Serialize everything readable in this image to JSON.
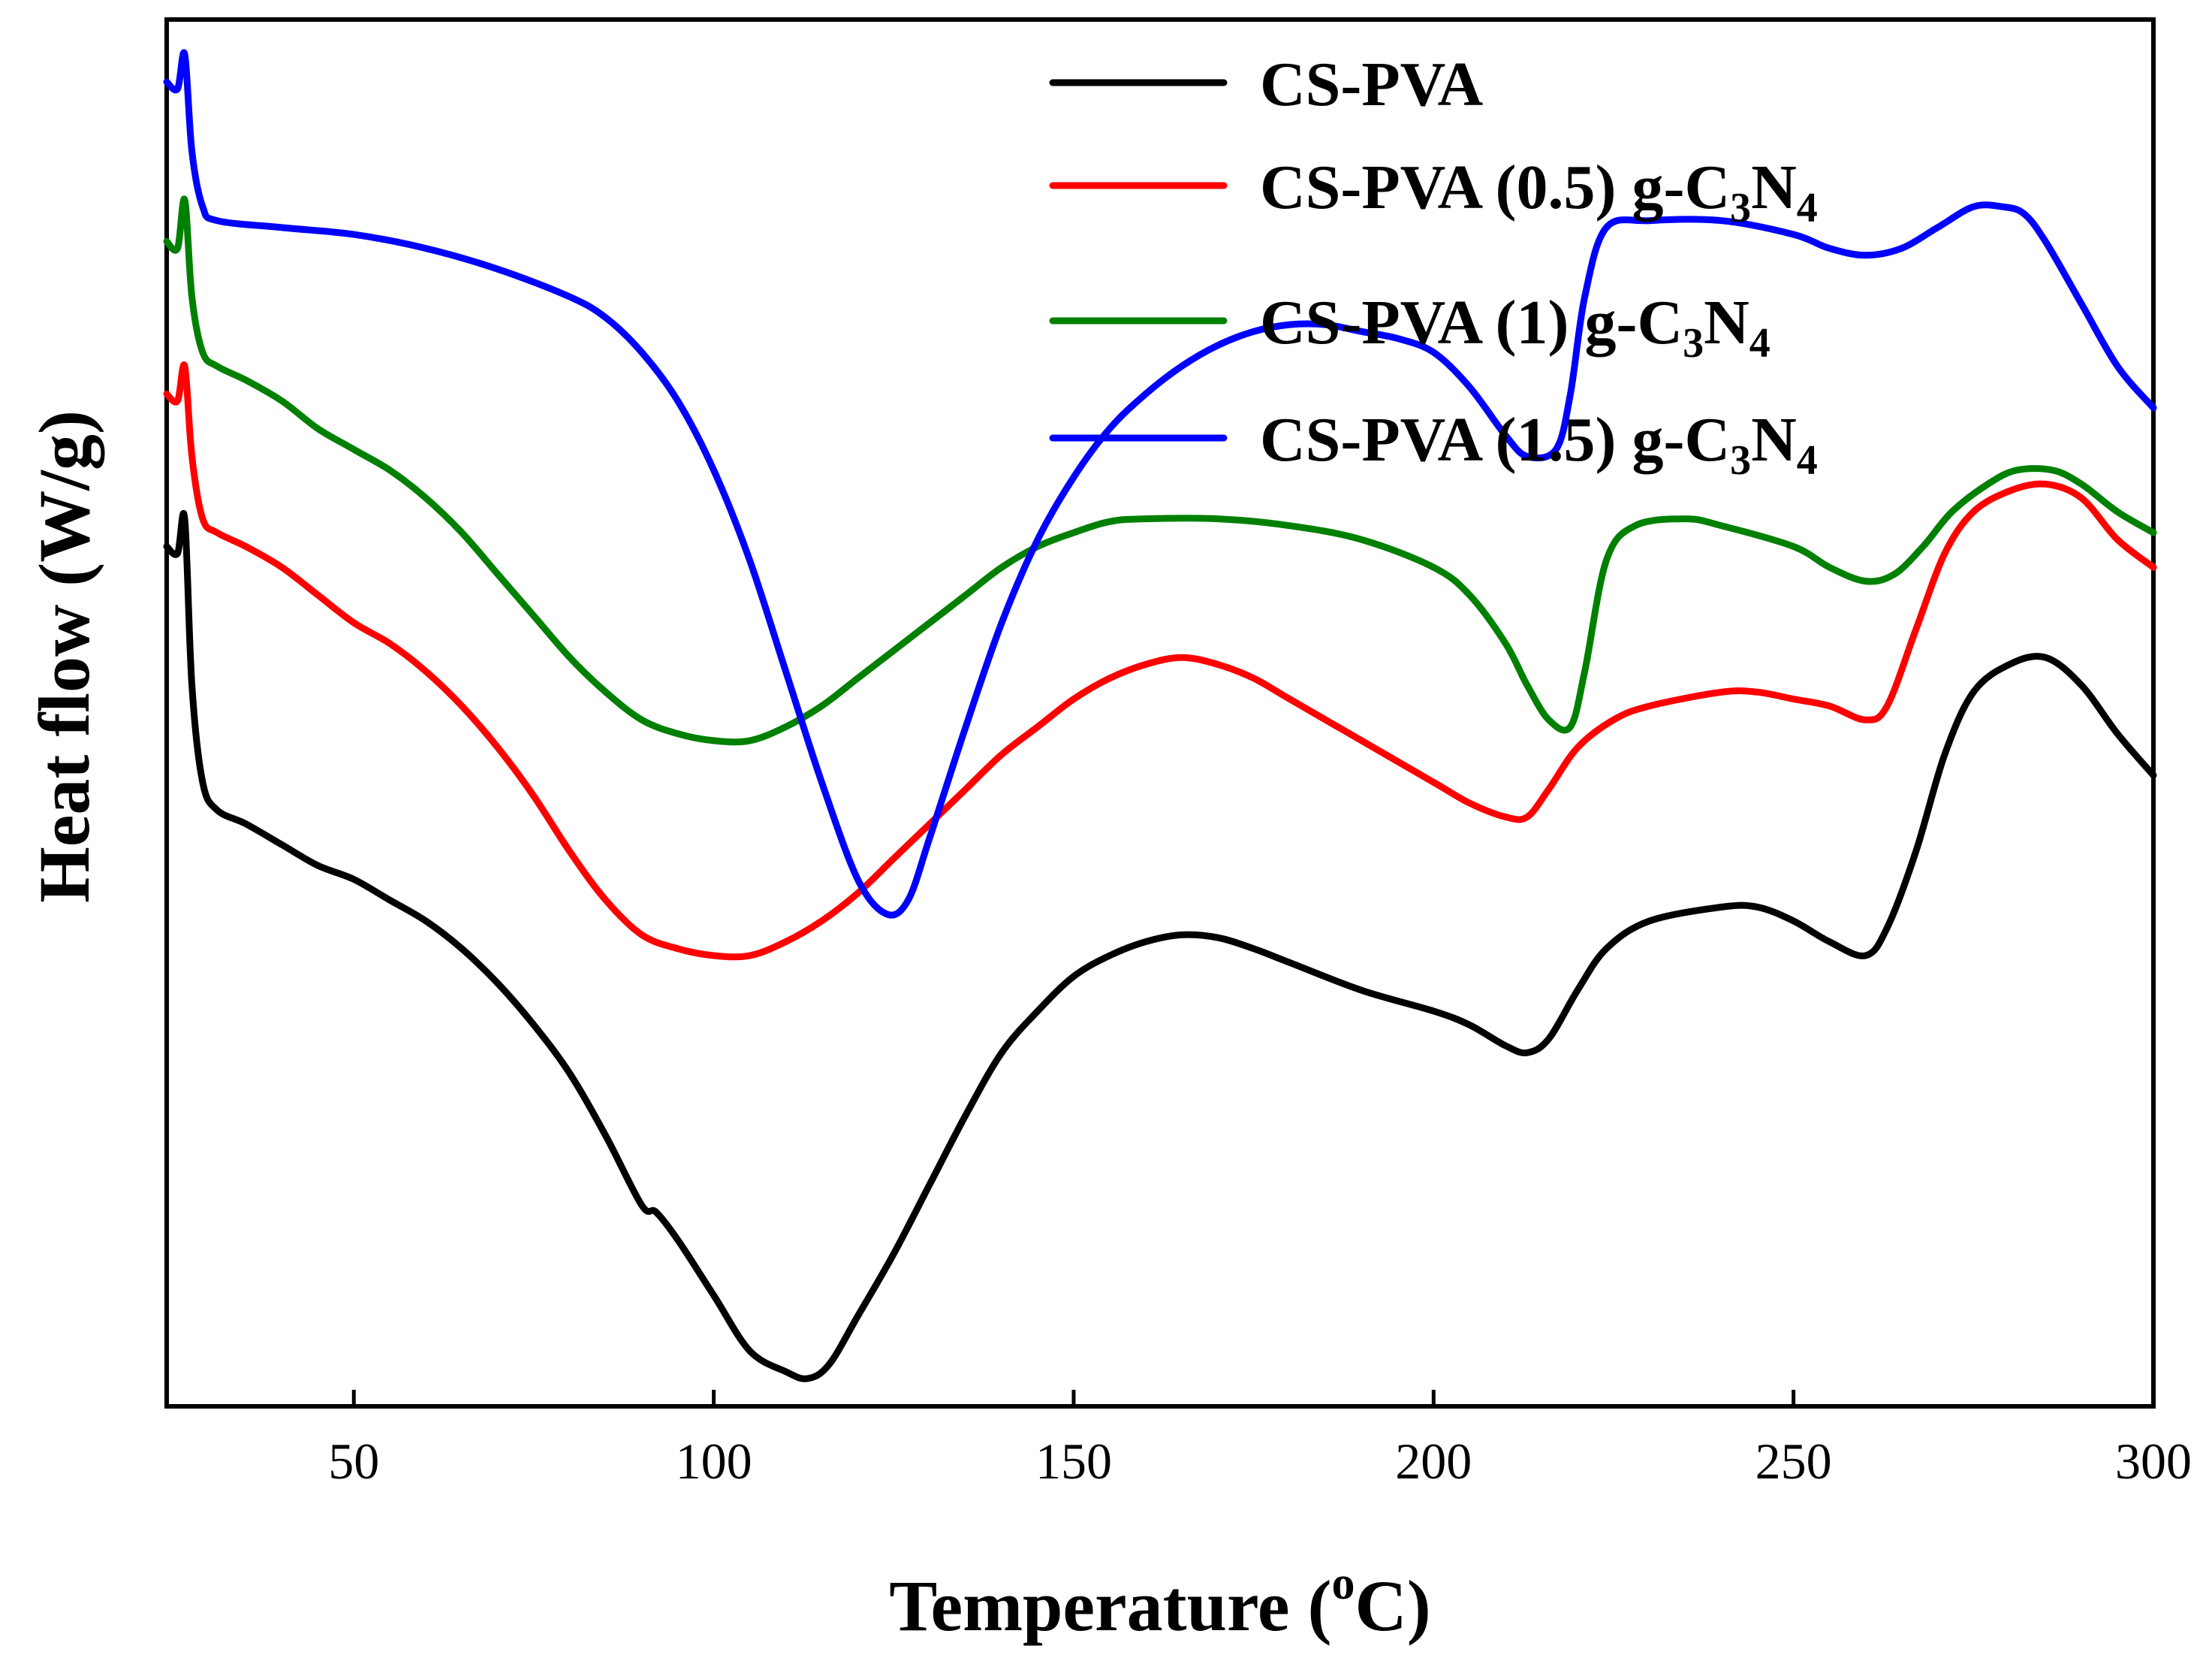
{
  "chart_data": {
    "type": "line",
    "title": "",
    "xlabel": {
      "main": "Temperature (",
      "sup": "o",
      "tail": "C)"
    },
    "ylabel": "Heat flow (W/g)",
    "xlim": [
      24,
      300
    ],
    "ylim": [
      0,
      100
    ],
    "x_ticks": [
      50,
      100,
      150,
      200,
      250,
      300
    ],
    "x_tick_labels": [
      "50",
      "100",
      "150",
      "200",
      "250",
      "300"
    ],
    "y_ticks": [],
    "grid": false,
    "legend_position": "top-right",
    "series": [
      {
        "name": "CS-PVA",
        "legend": {
          "base": "CS-PVA",
          "sub1": "",
          "mid": "",
          "sub2": ""
        },
        "color": "#000000",
        "points": [
          [
            24,
            62
          ],
          [
            25.5,
            61.5
          ],
          [
            26.5,
            64
          ],
          [
            27.5,
            52
          ],
          [
            29,
            45
          ],
          [
            31,
            43
          ],
          [
            35,
            42
          ],
          [
            40,
            40.5
          ],
          [
            45,
            39
          ],
          [
            50,
            38
          ],
          [
            55,
            36.5
          ],
          [
            60,
            35
          ],
          [
            65,
            33
          ],
          [
            70,
            30.5
          ],
          [
            75,
            27.5
          ],
          [
            80,
            24
          ],
          [
            85,
            19.5
          ],
          [
            90,
            14.5
          ],
          [
            92,
            14
          ],
          [
            95,
            12
          ],
          [
            100,
            8
          ],
          [
            105,
            4
          ],
          [
            110,
            2.5
          ],
          [
            113,
            2
          ],
          [
            116,
            3
          ],
          [
            120,
            6.5
          ],
          [
            125,
            11
          ],
          [
            130,
            16
          ],
          [
            135,
            21
          ],
          [
            140,
            25.5
          ],
          [
            145,
            28.5
          ],
          [
            150,
            31
          ],
          [
            155,
            32.5
          ],
          [
            160,
            33.5
          ],
          [
            165,
            34
          ],
          [
            170,
            33.8
          ],
          [
            175,
            33
          ],
          [
            180,
            32
          ],
          [
            190,
            30
          ],
          [
            200,
            28.5
          ],
          [
            205,
            27.5
          ],
          [
            210,
            26
          ],
          [
            213,
            25.5
          ],
          [
            216,
            26.5
          ],
          [
            220,
            30
          ],
          [
            224,
            33
          ],
          [
            230,
            35
          ],
          [
            240,
            36
          ],
          [
            245,
            36
          ],
          [
            250,
            35
          ],
          [
            255,
            33.5
          ],
          [
            260,
            32.5
          ],
          [
            263,
            34.5
          ],
          [
            267,
            40
          ],
          [
            271,
            47
          ],
          [
            275,
            51.5
          ],
          [
            280,
            53.5
          ],
          [
            285,
            54
          ],
          [
            290,
            52
          ],
          [
            295,
            48.5
          ],
          [
            300,
            45.5
          ]
        ]
      },
      {
        "name": "CS-PVA (0.5) g-C3N4",
        "legend": {
          "base": "CS-PVA (0.5) g-C",
          "sub1": "3",
          "mid": "N",
          "sub2": "4"
        },
        "color": "#ff0000",
        "points": [
          [
            24,
            73
          ],
          [
            25.5,
            72.5
          ],
          [
            26.5,
            75
          ],
          [
            27.5,
            68.5
          ],
          [
            29,
            64
          ],
          [
            31,
            63
          ],
          [
            35,
            62
          ],
          [
            40,
            60.5
          ],
          [
            45,
            58.5
          ],
          [
            50,
            56.5
          ],
          [
            55,
            55
          ],
          [
            60,
            53
          ],
          [
            65,
            50.5
          ],
          [
            70,
            47.5
          ],
          [
            75,
            44
          ],
          [
            80,
            40
          ],
          [
            85,
            36.5
          ],
          [
            90,
            34
          ],
          [
            95,
            33
          ],
          [
            100,
            32.5
          ],
          [
            105,
            32.5
          ],
          [
            110,
            33.5
          ],
          [
            115,
            35
          ],
          [
            120,
            37
          ],
          [
            125,
            39.5
          ],
          [
            130,
            42
          ],
          [
            135,
            44.5
          ],
          [
            140,
            47
          ],
          [
            145,
            49
          ],
          [
            150,
            51
          ],
          [
            155,
            52.5
          ],
          [
            160,
            53.5
          ],
          [
            165,
            54
          ],
          [
            170,
            53.5
          ],
          [
            175,
            52.5
          ],
          [
            180,
            51
          ],
          [
            190,
            48
          ],
          [
            200,
            45
          ],
          [
            205,
            43.5
          ],
          [
            210,
            42.5
          ],
          [
            213,
            42.5
          ],
          [
            216,
            44.5
          ],
          [
            220,
            47.5
          ],
          [
            225,
            49.5
          ],
          [
            230,
            50.5
          ],
          [
            240,
            51.5
          ],
          [
            245,
            51.5
          ],
          [
            250,
            51
          ],
          [
            255,
            50.5
          ],
          [
            260,
            49.5
          ],
          [
            263,
            50.5
          ],
          [
            267,
            56
          ],
          [
            271,
            61.5
          ],
          [
            275,
            64.5
          ],
          [
            280,
            66
          ],
          [
            285,
            66.5
          ],
          [
            290,
            65.5
          ],
          [
            295,
            62.5
          ],
          [
            300,
            60.5
          ]
        ]
      },
      {
        "name": "CS-PVA (1) g-C3N4",
        "legend": {
          "base": "CS-PVA (1) g-C",
          "sub1": "3",
          "mid": "N",
          "sub2": "4"
        },
        "color": "#008000",
        "points": [
          [
            24,
            84
          ],
          [
            25.5,
            83.5
          ],
          [
            26.5,
            87
          ],
          [
            27.5,
            80
          ],
          [
            29,
            76
          ],
          [
            31,
            75
          ],
          [
            35,
            74
          ],
          [
            40,
            72.5
          ],
          [
            45,
            70.5
          ],
          [
            50,
            69
          ],
          [
            55,
            67.5
          ],
          [
            60,
            65.5
          ],
          [
            65,
            63
          ],
          [
            70,
            60
          ],
          [
            75,
            57
          ],
          [
            80,
            54
          ],
          [
            85,
            51.5
          ],
          [
            90,
            49.5
          ],
          [
            95,
            48.5
          ],
          [
            100,
            48
          ],
          [
            105,
            48
          ],
          [
            110,
            49
          ],
          [
            115,
            50.5
          ],
          [
            120,
            52.5
          ],
          [
            125,
            54.5
          ],
          [
            130,
            56.5
          ],
          [
            135,
            58.5
          ],
          [
            140,
            60.5
          ],
          [
            145,
            62
          ],
          [
            150,
            63
          ],
          [
            155,
            63.8
          ],
          [
            160,
            64
          ],
          [
            170,
            64
          ],
          [
            180,
            63.5
          ],
          [
            190,
            62.5
          ],
          [
            200,
            60.5
          ],
          [
            205,
            58.5
          ],
          [
            210,
            55
          ],
          [
            213,
            52
          ],
          [
            216,
            49.5
          ],
          [
            219,
            49
          ],
          [
            221,
            53
          ],
          [
            224,
            61
          ],
          [
            228,
            63.5
          ],
          [
            235,
            64
          ],
          [
            240,
            63.5
          ],
          [
            250,
            62
          ],
          [
            255,
            60.5
          ],
          [
            260,
            59.5
          ],
          [
            264,
            60
          ],
          [
            268,
            62
          ],
          [
            272,
            64.5
          ],
          [
            277,
            66.5
          ],
          [
            281,
            67.5
          ],
          [
            286,
            67.5
          ],
          [
            290,
            66.5
          ],
          [
            295,
            64.5
          ],
          [
            300,
            63
          ]
        ]
      },
      {
        "name": "CS-PVA (1.5) g-C3N4",
        "legend": {
          "base": "CS-PVA (1.5) g-C",
          "sub1": "3",
          "mid": "N",
          "sub2": "4"
        },
        "color": "#0000ff",
        "points": [
          [
            24,
            95.5
          ],
          [
            25.5,
            95
          ],
          [
            26.5,
            97.5
          ],
          [
            27.5,
            90.5
          ],
          [
            29,
            86.5
          ],
          [
            31,
            85.5
          ],
          [
            40,
            85
          ],
          [
            50,
            84.5
          ],
          [
            60,
            83.5
          ],
          [
            70,
            82
          ],
          [
            80,
            80
          ],
          [
            85,
            78.5
          ],
          [
            90,
            76
          ],
          [
            95,
            72.5
          ],
          [
            100,
            67.5
          ],
          [
            105,
            61
          ],
          [
            110,
            53
          ],
          [
            115,
            45
          ],
          [
            120,
            38
          ],
          [
            124,
            35.5
          ],
          [
            127,
            36.5
          ],
          [
            130,
            41
          ],
          [
            135,
            49
          ],
          [
            140,
            56.5
          ],
          [
            145,
            62.5
          ],
          [
            150,
            67
          ],
          [
            155,
            70.5
          ],
          [
            160,
            73
          ],
          [
            165,
            75
          ],
          [
            170,
            76.5
          ],
          [
            175,
            77.5
          ],
          [
            180,
            78
          ],
          [
            185,
            78
          ],
          [
            190,
            77.5
          ],
          [
            195,
            77
          ],
          [
            200,
            76
          ],
          [
            205,
            73.5
          ],
          [
            210,
            70
          ],
          [
            213,
            68.5
          ],
          [
            217,
            69
          ],
          [
            219,
            73
          ],
          [
            221,
            80
          ],
          [
            224,
            85
          ],
          [
            230,
            85.5
          ],
          [
            240,
            85.5
          ],
          [
            250,
            84.5
          ],
          [
            255,
            83.5
          ],
          [
            260,
            83
          ],
          [
            265,
            83.5
          ],
          [
            270,
            85
          ],
          [
            275,
            86.5
          ],
          [
            279,
            86.5
          ],
          [
            282,
            86
          ],
          [
            285,
            84
          ],
          [
            290,
            79.5
          ],
          [
            295,
            75
          ],
          [
            300,
            72
          ]
        ]
      }
    ]
  }
}
